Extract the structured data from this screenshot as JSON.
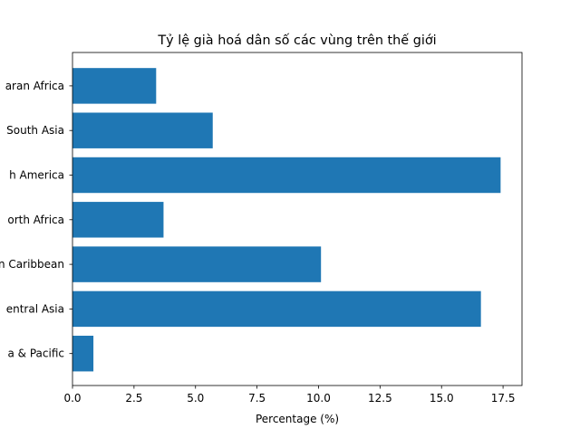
{
  "chart_data": {
    "type": "bar",
    "orientation": "horizontal",
    "title": "Tỷ lệ già hoá dân số các vùng trên thế giới",
    "xlabel": "Percentage (%)",
    "ylabel": "",
    "categories": [
      "East Asia & Pacific",
      "Europe & Central Asia",
      "Latin America & Caribbean",
      "Middle East & North Africa",
      "North America",
      "South Asia",
      "Sub-Saharan Africa"
    ],
    "categories_visible": [
      "a & Pacific",
      "entral Asia",
      "n Caribbean",
      "orth Africa",
      "h America",
      "South Asia",
      "aran Africa"
    ],
    "values": [
      0.85,
      16.6,
      10.1,
      3.7,
      17.4,
      5.7,
      3.4
    ],
    "xlim": [
      0,
      18.27
    ],
    "xticks": [
      "0.0",
      "2.5",
      "5.0",
      "7.5",
      "10.0",
      "12.5",
      "15.0",
      "17.5"
    ],
    "bar_color": "#1f77b4",
    "grid": false,
    "legend": "none"
  }
}
